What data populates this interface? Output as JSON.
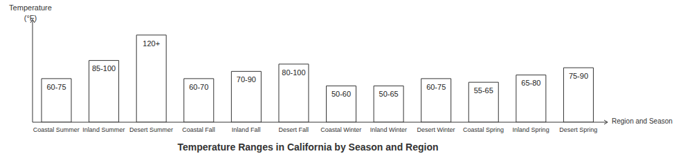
{
  "chart_data": {
    "type": "bar",
    "title": "Temperature Ranges in California by Season and Region",
    "x_label": "Region and Season",
    "y_label": "Temperature (°F)",
    "categories": [
      "Coastal Summer",
      "Inland Summer",
      "Desert Summer",
      "Coastal Fall",
      "Inland Fall",
      "Desert Fall",
      "Coastal Winter",
      "Inland Winter",
      "Desert Winter",
      "Coastal Spring",
      "Inland Spring",
      "Desert Spring"
    ],
    "values": [
      60,
      85,
      120,
      60,
      70,
      80,
      50,
      50,
      60,
      55,
      65,
      75
    ],
    "value_labels": [
      "60-75",
      "85-100",
      "120+",
      "60-70",
      "70-90",
      "80-100",
      "50-60",
      "50-65",
      "60-75",
      "55-65",
      "65-80",
      "75-90"
    ],
    "color": "#ffffff",
    "ylim": [
      0,
      135
    ],
    "grid": false,
    "data_labels": true,
    "tick_labels": "x"
  }
}
